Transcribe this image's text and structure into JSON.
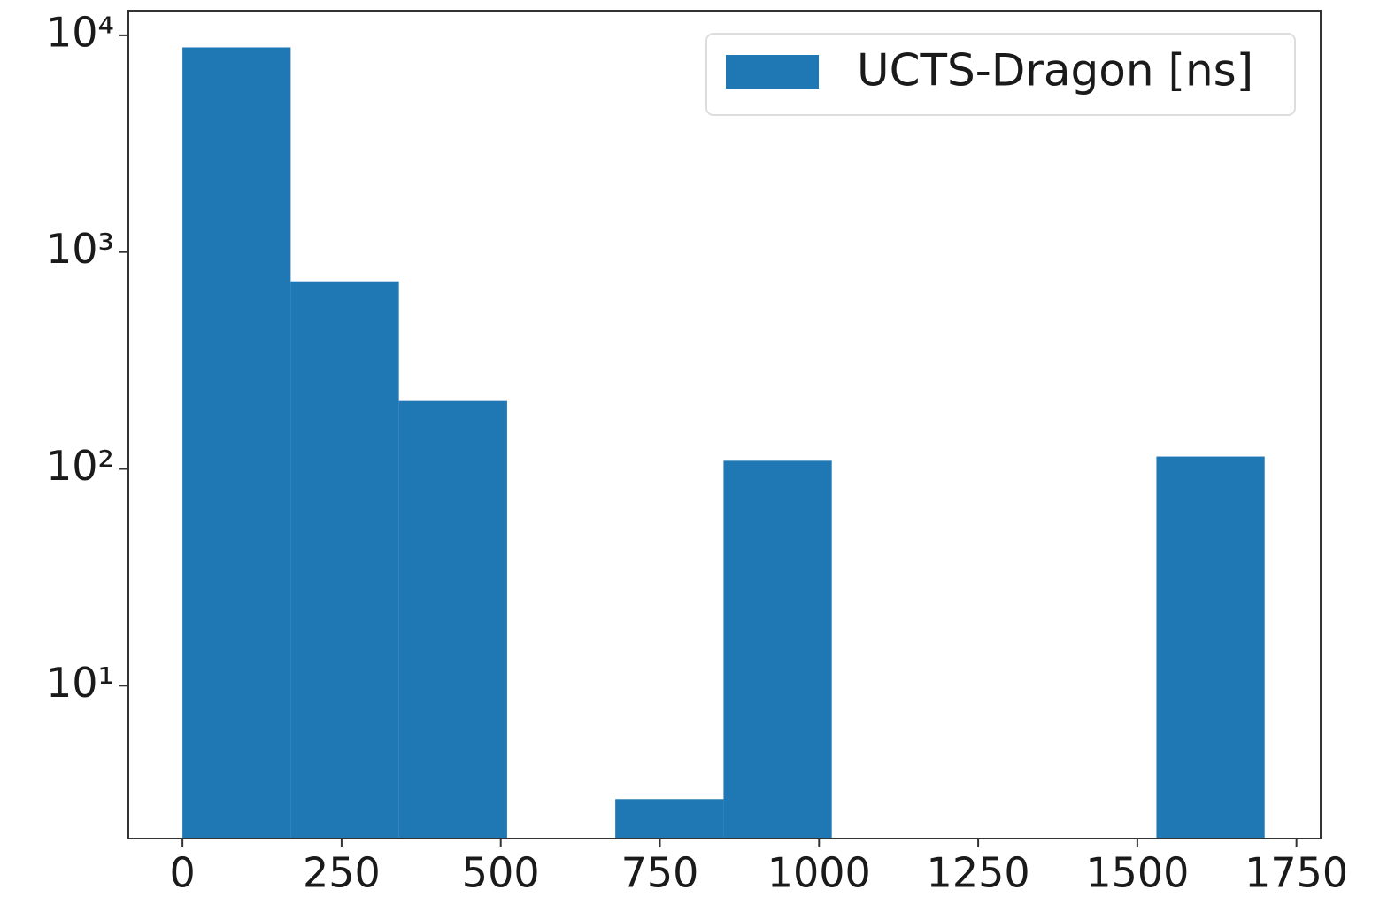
{
  "chart_data": {
    "type": "histogram",
    "bins": [
      0,
      170,
      340,
      510,
      680,
      850,
      1020,
      1190,
      1360,
      1530,
      1700
    ],
    "series": [
      {
        "name": "UCTS-Dragon [ns]",
        "color": "#1f77b4",
        "values": [
          8800,
          733,
          206,
          0,
          3,
          109,
          0,
          0,
          0,
          114
        ]
      }
    ],
    "xlim": [
      -85,
      1788
    ],
    "xticks": [
      0,
      250,
      500,
      750,
      1000,
      1250,
      1500,
      1750
    ],
    "ylim": [
      1.97,
      13000
    ],
    "ylog": true,
    "yticks": [
      {
        "value": 10,
        "label": "10¹"
      },
      {
        "value": 100,
        "label": "10²"
      },
      {
        "value": 1000,
        "label": "10³"
      },
      {
        "value": 10000,
        "label": "10⁴"
      }
    ],
    "legend": "upper right",
    "grid": false
  }
}
